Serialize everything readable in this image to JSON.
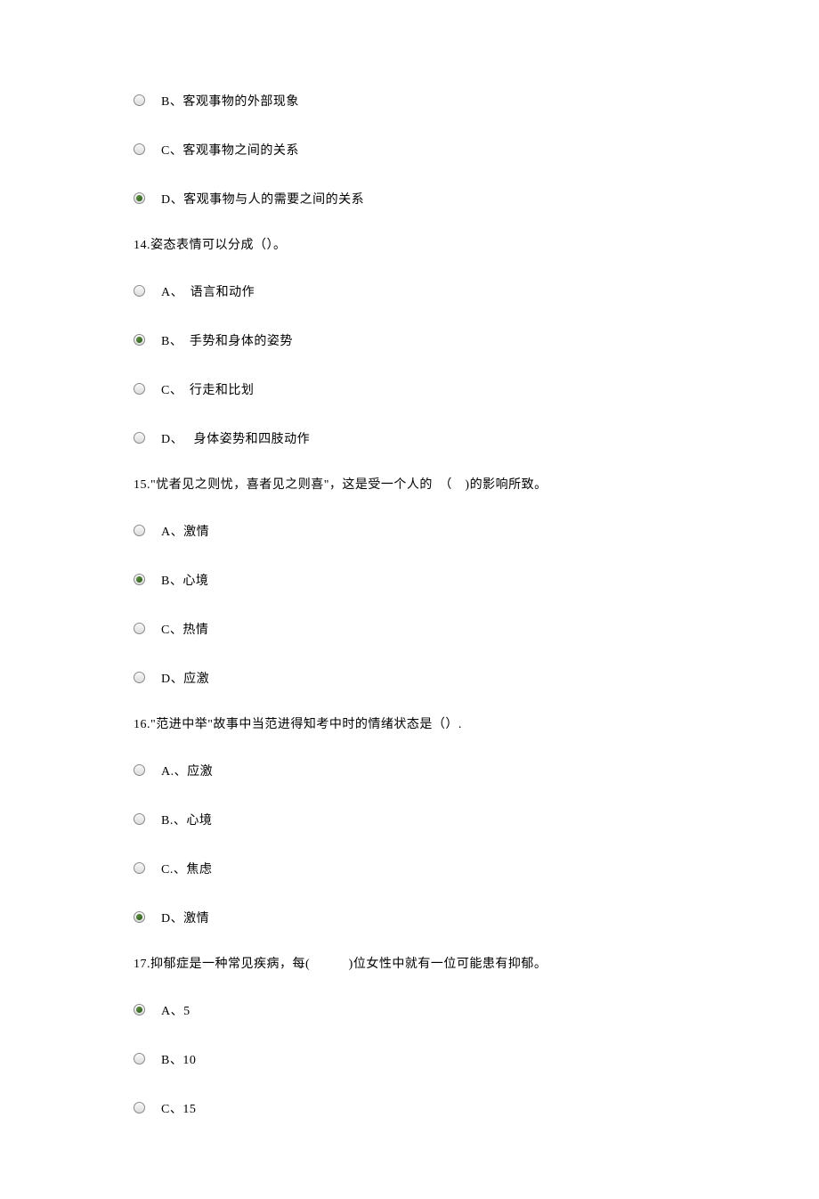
{
  "q13": {
    "options": [
      {
        "label": "B、客观事物的外部现象",
        "selected": false
      },
      {
        "label": "C、客观事物之间的关系",
        "selected": false
      },
      {
        "label": "D、客观事物与人的需要之间的关系",
        "selected": true
      }
    ]
  },
  "q14": {
    "text": "14.姿态表情可以分成（）。",
    "options": [
      {
        "label": "A、　语言和动作",
        "selected": false
      },
      {
        "label": "B、　手势和身体的姿势",
        "selected": true
      },
      {
        "label": "C、　行走和比划",
        "selected": false
      },
      {
        "label": "D、　 身体姿势和四肢动作",
        "selected": false
      }
    ]
  },
  "q15": {
    "text": "15.\"忧者见之则忧，喜者见之则喜\"，这是受一个人的　（　)的影响所致。",
    "options": [
      {
        "label": "A、激情",
        "selected": false
      },
      {
        "label": "B、心境",
        "selected": true
      },
      {
        "label": "C、热情",
        "selected": false
      },
      {
        "label": "D、应激",
        "selected": false
      }
    ]
  },
  "q16": {
    "text": "16.\"范进中举\"故事中当范进得知考中时的情绪状态是（）.",
    "options": [
      {
        "label": "A.、应激",
        "selected": false
      },
      {
        "label": "B.、心境",
        "selected": false
      },
      {
        "label": "C.、焦虑",
        "selected": false
      },
      {
        "label": "D、激情",
        "selected": true
      }
    ]
  },
  "q17": {
    "text": "17.抑郁症是一种常见疾病，每(　　　)位女性中就有一位可能患有抑郁。",
    "options": [
      {
        "label": "A、5",
        "selected": true
      },
      {
        "label": "B、10",
        "selected": false
      },
      {
        "label": "C、15",
        "selected": false
      }
    ]
  },
  "colors": {
    "background": "#ffffff",
    "text": "#000000",
    "radio_border": "#888888",
    "radio_fill_selected": "#3a6a2a"
  },
  "typography": {
    "font_family": "SimSun",
    "font_size_pt": 10.5,
    "line_height": 1.5
  }
}
